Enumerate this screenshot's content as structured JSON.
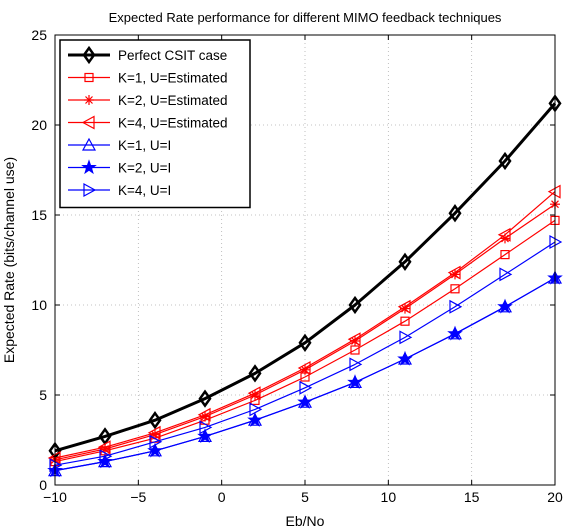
{
  "chart_data": {
    "type": "line",
    "title": "Expected Rate performance for different MIMO feedback techniques",
    "xlabel": "Eb/No",
    "ylabel": "Expected Rate (bits/channel use)",
    "xlim": [
      -10,
      20
    ],
    "ylim": [
      0,
      25
    ],
    "x_ticks": [
      -10,
      -5,
      0,
      5,
      10,
      15,
      20
    ],
    "y_ticks": [
      0,
      5,
      10,
      15,
      20,
      25
    ],
    "x_tick_labels": [
      "−10",
      "−5",
      "0",
      "5",
      "10",
      "15",
      "20"
    ],
    "y_tick_labels": [
      "0",
      "5",
      "10",
      "15",
      "20",
      "25"
    ],
    "grid": true,
    "legend_position": "top-left",
    "x": [
      -10,
      -7,
      -4,
      -1,
      2,
      5,
      8,
      11,
      14,
      17,
      20
    ],
    "series": [
      {
        "name": "Perfect CSIT case",
        "color": "#000000",
        "marker": "diamond",
        "width": 3,
        "values": [
          1.9,
          2.7,
          3.6,
          4.8,
          6.2,
          7.9,
          10.0,
          12.4,
          15.1,
          18.0,
          21.2
        ]
      },
      {
        "name": "K=1, U=Estimated",
        "color": "#ff0000",
        "marker": "square",
        "width": 1.2,
        "values": [
          1.3,
          1.9,
          2.6,
          3.6,
          4.7,
          6.0,
          7.5,
          9.1,
          10.9,
          12.8,
          14.7
        ]
      },
      {
        "name": "K=2, U=Estimated",
        "color": "#ff0000",
        "marker": "star",
        "width": 1.2,
        "values": [
          1.4,
          2.0,
          2.8,
          3.8,
          5.0,
          6.4,
          8.0,
          9.8,
          11.7,
          13.7,
          15.6
        ]
      },
      {
        "name": "K=4, U=Estimated",
        "color": "#ff0000",
        "marker": "triangle-left",
        "width": 1.2,
        "values": [
          1.5,
          2.1,
          2.9,
          3.9,
          5.1,
          6.5,
          8.1,
          9.9,
          11.8,
          13.9,
          16.3
        ]
      },
      {
        "name": "K=1, U=I",
        "color": "#0000ff",
        "marker": "triangle-up",
        "width": 1.2,
        "values": [
          0.8,
          1.3,
          1.9,
          2.7,
          3.6,
          4.6,
          5.7,
          7.0,
          8.4,
          9.9,
          11.5
        ]
      },
      {
        "name": "K=2, U=I",
        "color": "#0000ff",
        "marker": "star5",
        "width": 1.2,
        "values": [
          0.8,
          1.3,
          1.9,
          2.7,
          3.6,
          4.6,
          5.7,
          7.0,
          8.4,
          9.9,
          11.5
        ]
      },
      {
        "name": "K=4, U=I",
        "color": "#0000ff",
        "marker": "triangle-right",
        "width": 1.2,
        "values": [
          1.1,
          1.6,
          2.4,
          3.2,
          4.2,
          5.4,
          6.7,
          8.2,
          9.9,
          11.7,
          13.5
        ]
      }
    ]
  }
}
